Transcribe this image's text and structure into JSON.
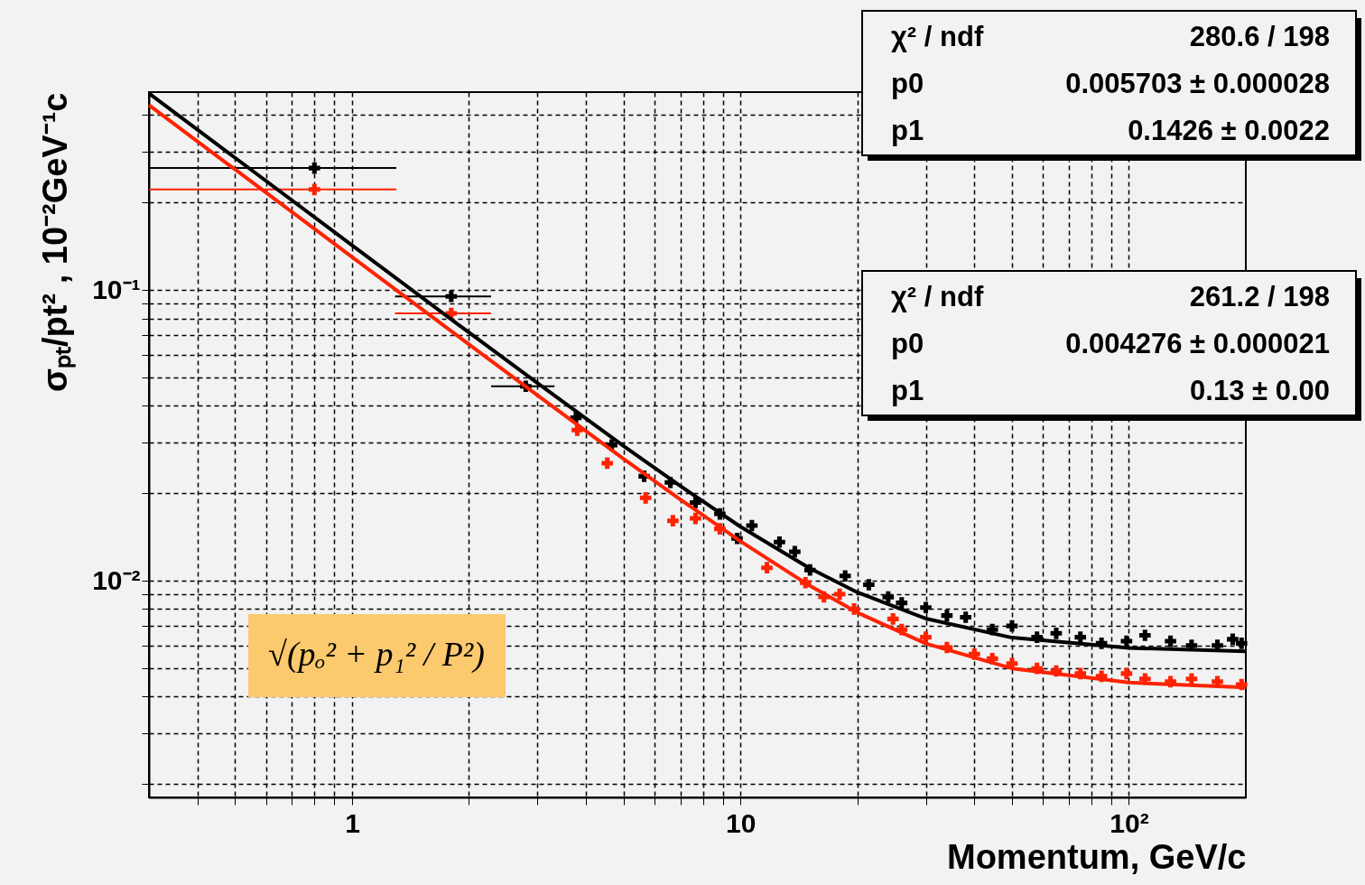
{
  "chart_data": {
    "type": "scatter",
    "log": "xy",
    "grid": true,
    "xlabel": "Momentum, GeV/c",
    "ylabel": "σₚₜ/pt² ,  10⁻²GeV⁻¹c",
    "xlim": [
      0.3,
      200
    ],
    "ylim": [
      0.0018,
      0.48
    ],
    "xticks": [
      {
        "value": 0.4,
        "label": null
      },
      {
        "value": 0.5,
        "label": null
      },
      {
        "value": 0.6,
        "label": null
      },
      {
        "value": 0.7,
        "label": null
      },
      {
        "value": 0.8,
        "label": null
      },
      {
        "value": 0.9,
        "label": null
      },
      1,
      {
        "value": 2,
        "label": null
      },
      {
        "value": 3,
        "label": null
      },
      {
        "value": 4,
        "label": null
      },
      {
        "value": 5,
        "label": null
      },
      {
        "value": 6,
        "label": null
      },
      {
        "value": 7,
        "label": null
      },
      {
        "value": 8,
        "label": null
      },
      {
        "value": 9,
        "label": null
      },
      10,
      {
        "value": 20,
        "label": null
      },
      {
        "value": 30,
        "label": null
      },
      {
        "value": 40,
        "label": null
      },
      {
        "value": 50,
        "label": null
      },
      {
        "value": 60,
        "label": null
      },
      {
        "value": 70,
        "label": null
      },
      {
        "value": 80,
        "label": null
      },
      {
        "value": 90,
        "label": null
      },
      {
        "value": 100,
        "label": "10²"
      }
    ],
    "yticks": [
      {
        "value": 0.002,
        "label": null
      },
      {
        "value": 0.003,
        "label": null
      },
      {
        "value": 0.004,
        "label": null
      },
      {
        "value": 0.005,
        "label": null
      },
      {
        "value": 0.006,
        "label": null
      },
      {
        "value": 0.007,
        "label": null
      },
      {
        "value": 0.008,
        "label": null
      },
      {
        "value": 0.009,
        "label": null
      },
      {
        "value": 0.01,
        "label": "10⁻²"
      },
      {
        "value": 0.02,
        "label": null
      },
      {
        "value": 0.03,
        "label": null
      },
      {
        "value": 0.04,
        "label": null
      },
      {
        "value": 0.05,
        "label": null
      },
      {
        "value": 0.06,
        "label": null
      },
      {
        "value": 0.07,
        "label": null
      },
      {
        "value": 0.08,
        "label": null
      },
      {
        "value": 0.09,
        "label": null
      },
      {
        "value": 0.1,
        "label": "10⁻¹"
      },
      {
        "value": 0.2,
        "label": null
      },
      {
        "value": 0.3,
        "label": null
      },
      {
        "value": 0.4,
        "label": null
      }
    ],
    "annotations": [
      "χ² / ndf",
      "280.6 / 198",
      "p0",
      "0.005703 ± 0.000028",
      "p1",
      "0.1426 ± 0.0022",
      "χ² / ndf",
      "261.2 / 198",
      "p0",
      "0.004276 ± 0.000021",
      "p1",
      "0.13 ± 0.00",
      "√(pₒ² + p₁² / P²)"
    ],
    "series": [
      {
        "marker": "cross",
        "color": "#000000",
        "x": [
          0.8,
          1.8,
          2.8,
          3.77,
          4.66,
          5.65,
          6.6,
          7.66,
          8.85,
          9.8,
          10.7,
          12.6,
          13.8,
          15.1,
          18.6,
          21.4,
          24,
          26,
          30,
          34,
          38,
          44.5,
          50,
          58,
          65,
          75,
          85,
          98.6,
          110,
          128,
          145,
          169,
          185,
          195
        ],
        "values": [
          0.263,
          0.0952,
          0.0467,
          0.0364,
          0.0293,
          0.0229,
          0.0218,
          0.0186,
          0.017,
          0.014,
          0.0155,
          0.0136,
          0.0126,
          0.0109,
          0.0104,
          0.0097,
          0.0088,
          0.0084,
          0.0081,
          0.0076,
          0.0075,
          0.0068,
          0.007,
          0.0064,
          0.0066,
          0.0064,
          0.0061,
          0.0062,
          0.0065,
          0.0062,
          0.006,
          0.006,
          0.0063,
          0.0061
        ],
        "xerrors": [
          [
            0.3,
            1.3
          ],
          [
            1.29,
            2.28
          ],
          [
            2.28,
            3.32
          ],
          null,
          null,
          null,
          null,
          null,
          null,
          null,
          null,
          null,
          null,
          null,
          null,
          null,
          null,
          null,
          null,
          null,
          null,
          null,
          null,
          null,
          null,
          null,
          null,
          null,
          null,
          null,
          null,
          null,
          null,
          null
        ]
      },
      {
        "marker": "cross",
        "color": "#ff2200",
        "x": [
          0.8,
          1.8,
          3.8,
          4.54,
          5.7,
          6.7,
          7.66,
          8.85,
          11.7,
          14.7,
          16.4,
          18,
          19.6,
          24.7,
          26,
          30,
          34,
          40,
          44.5,
          50,
          58,
          65,
          75,
          85,
          98.6,
          110,
          128,
          145,
          169,
          195
        ],
        "values": [
          0.222,
          0.0832,
          0.033,
          0.0254,
          0.0193,
          0.0161,
          0.0164,
          0.0151,
          0.0111,
          0.00986,
          0.00881,
          0.009,
          0.008,
          0.0074,
          0.0068,
          0.0064,
          0.0059,
          0.0056,
          0.0054,
          0.0052,
          0.005,
          0.0049,
          0.0048,
          0.0047,
          0.0048,
          0.0046,
          0.0045,
          0.0046,
          0.0045,
          0.0044
        ],
        "xerrors": [
          [
            0.3,
            1.3
          ],
          [
            1.29,
            2.28
          ],
          null,
          null,
          null,
          null,
          null,
          null,
          null,
          null,
          null,
          null,
          null,
          null,
          null,
          null,
          null,
          null,
          null,
          null,
          null,
          null,
          null,
          null,
          null,
          null,
          null,
          null,
          null,
          null
        ]
      },
      {
        "type": "line",
        "marker": "none",
        "color": "#000000",
        "x": [
          0.3,
          0.5,
          1,
          2,
          3,
          5,
          7,
          10,
          15,
          20,
          30,
          50,
          100,
          200
        ],
        "values": [
          0.4753,
          0.2853,
          0.1427,
          0.0715,
          0.0479,
          0.0291,
          0.0212,
          0.01536,
          0.01109,
          0.00913,
          0.00742,
          0.00638,
          0.00588,
          0.00572
        ]
      },
      {
        "type": "line",
        "marker": "none",
        "color": "#ff2200",
        "x": [
          0.3,
          0.5,
          1,
          2,
          3,
          5,
          7,
          10,
          15,
          20,
          30,
          50,
          100,
          200
        ],
        "values": [
          0.4333,
          0.26,
          0.1301,
          0.0651,
          0.0435,
          0.0263,
          0.01906,
          0.01369,
          0.00966,
          0.00778,
          0.00609,
          0.005,
          0.00447,
          0.0043
        ]
      }
    ]
  }
}
